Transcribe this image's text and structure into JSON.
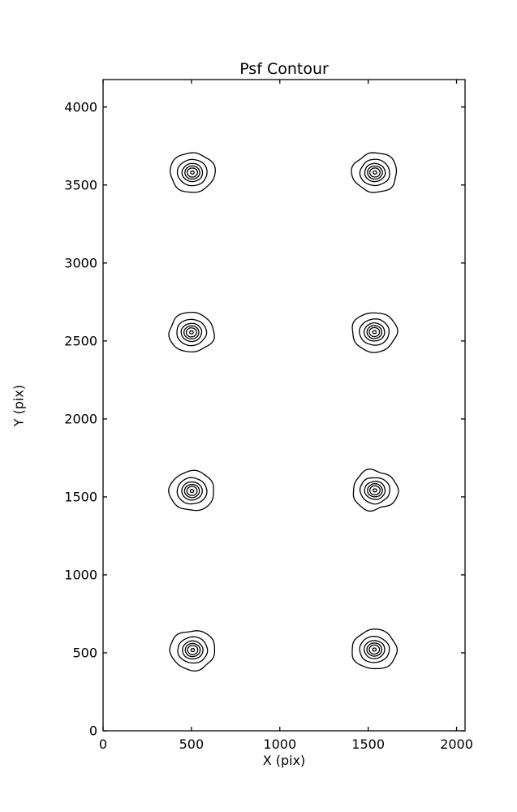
{
  "chart_data": {
    "type": "contour",
    "title": "Psf Contour",
    "xlabel": "X (pix)",
    "ylabel": "Y (pix)",
    "xlim": [
      0,
      2048
    ],
    "ylim": [
      0,
      4176
    ],
    "x_ticks": [
      "0",
      "500",
      "1000",
      "1500",
      "2000"
    ],
    "x_tick_values": [
      0,
      500,
      1000,
      1500,
      2000
    ],
    "y_ticks": [
      "0",
      "500",
      "1000",
      "1500",
      "2000",
      "2500",
      "3000",
      "3500",
      "4000"
    ],
    "y_tick_values": [
      0,
      500,
      1000,
      1500,
      2000,
      2500,
      3000,
      3500,
      4000
    ],
    "grid": false,
    "legend": "none",
    "line_color": "#000000",
    "background": "#ffffff",
    "contour_level_radii_pix": [
      127,
      84,
      58,
      42,
      29,
      10
    ],
    "spots": [
      {
        "cx": 505,
        "cy": 3580,
        "wobble": 0.055,
        "seed": 1
      },
      {
        "cx": 1538,
        "cy": 3580,
        "wobble": 0.075,
        "seed": 2
      },
      {
        "cx": 500,
        "cy": 2555,
        "wobble": 0.06,
        "seed": 3
      },
      {
        "cx": 1535,
        "cy": 2557,
        "wobble": 0.055,
        "seed": 4
      },
      {
        "cx": 503,
        "cy": 1538,
        "wobble": 0.055,
        "seed": 5
      },
      {
        "cx": 1538,
        "cy": 1542,
        "wobble": 0.105,
        "seed": 6
      },
      {
        "cx": 507,
        "cy": 518,
        "wobble": 0.065,
        "seed": 7
      },
      {
        "cx": 1535,
        "cy": 521,
        "wobble": 0.06,
        "seed": 8
      }
    ]
  }
}
